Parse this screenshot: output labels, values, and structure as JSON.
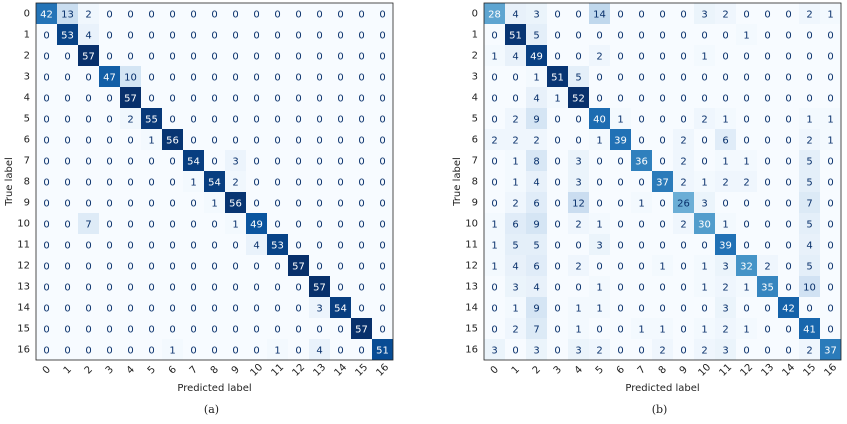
{
  "chart_data": [
    {
      "type": "heatmap",
      "caption": "(a)",
      "xlabel": "Predicted label",
      "ylabel": "True label",
      "categories": [
        "0",
        "1",
        "2",
        "3",
        "4",
        "5",
        "6",
        "7",
        "8",
        "9",
        "10",
        "11",
        "12",
        "13",
        "14",
        "15",
        "16"
      ],
      "colormap": [
        "#f7fbff",
        "#deebf7",
        "#c6dbef",
        "#9ecae1",
        "#6baed6",
        "#4292c6",
        "#2171b5",
        "#08519c",
        "#08306b"
      ],
      "values": [
        [
          42,
          13,
          2,
          0,
          0,
          0,
          0,
          0,
          0,
          0,
          0,
          0,
          0,
          0,
          0,
          0,
          0
        ],
        [
          0,
          53,
          4,
          0,
          0,
          0,
          0,
          0,
          0,
          0,
          0,
          0,
          0,
          0,
          0,
          0,
          0
        ],
        [
          0,
          0,
          57,
          0,
          0,
          0,
          0,
          0,
          0,
          0,
          0,
          0,
          0,
          0,
          0,
          0,
          0
        ],
        [
          0,
          0,
          0,
          47,
          10,
          0,
          0,
          0,
          0,
          0,
          0,
          0,
          0,
          0,
          0,
          0,
          0
        ],
        [
          0,
          0,
          0,
          0,
          57,
          0,
          0,
          0,
          0,
          0,
          0,
          0,
          0,
          0,
          0,
          0,
          0
        ],
        [
          0,
          0,
          0,
          0,
          2,
          55,
          0,
          0,
          0,
          0,
          0,
          0,
          0,
          0,
          0,
          0,
          0
        ],
        [
          0,
          0,
          0,
          0,
          0,
          1,
          56,
          0,
          0,
          0,
          0,
          0,
          0,
          0,
          0,
          0,
          0
        ],
        [
          0,
          0,
          0,
          0,
          0,
          0,
          0,
          54,
          0,
          3,
          0,
          0,
          0,
          0,
          0,
          0,
          0
        ],
        [
          0,
          0,
          0,
          0,
          0,
          0,
          0,
          1,
          54,
          2,
          0,
          0,
          0,
          0,
          0,
          0,
          0
        ],
        [
          0,
          0,
          0,
          0,
          0,
          0,
          0,
          0,
          1,
          56,
          0,
          0,
          0,
          0,
          0,
          0,
          0
        ],
        [
          0,
          0,
          7,
          0,
          0,
          0,
          0,
          0,
          0,
          1,
          49,
          0,
          0,
          0,
          0,
          0,
          0
        ],
        [
          0,
          0,
          0,
          0,
          0,
          0,
          0,
          0,
          0,
          0,
          4,
          53,
          0,
          0,
          0,
          0,
          0
        ],
        [
          0,
          0,
          0,
          0,
          0,
          0,
          0,
          0,
          0,
          0,
          0,
          0,
          57,
          0,
          0,
          0,
          0
        ],
        [
          0,
          0,
          0,
          0,
          0,
          0,
          0,
          0,
          0,
          0,
          0,
          0,
          0,
          57,
          0,
          0,
          0
        ],
        [
          0,
          0,
          0,
          0,
          0,
          0,
          0,
          0,
          0,
          0,
          0,
          0,
          0,
          3,
          54,
          0,
          0
        ],
        [
          0,
          0,
          0,
          0,
          0,
          0,
          0,
          0,
          0,
          0,
          0,
          0,
          0,
          0,
          0,
          57,
          0
        ],
        [
          0,
          0,
          0,
          0,
          0,
          0,
          1,
          0,
          0,
          0,
          0,
          1,
          0,
          4,
          0,
          0,
          51
        ]
      ]
    },
    {
      "type": "heatmap",
      "caption": "(b)",
      "xlabel": "Predicted label",
      "ylabel": "True label",
      "categories": [
        "0",
        "1",
        "2",
        "3",
        "4",
        "5",
        "6",
        "7",
        "8",
        "9",
        "10",
        "11",
        "12",
        "13",
        "14",
        "15",
        "16"
      ],
      "colormap": [
        "#f7fbff",
        "#deebf7",
        "#c6dbef",
        "#9ecae1",
        "#6baed6",
        "#4292c6",
        "#2171b5",
        "#08519c",
        "#08306b"
      ],
      "values": [
        [
          28,
          4,
          3,
          0,
          0,
          14,
          0,
          0,
          0,
          0,
          3,
          2,
          0,
          0,
          0,
          2,
          1
        ],
        [
          0,
          51,
          5,
          0,
          0,
          0,
          0,
          0,
          0,
          0,
          0,
          0,
          1,
          0,
          0,
          0,
          0
        ],
        [
          1,
          4,
          49,
          0,
          0,
          2,
          0,
          0,
          0,
          0,
          1,
          0,
          0,
          0,
          0,
          0,
          0
        ],
        [
          0,
          0,
          1,
          51,
          5,
          0,
          0,
          0,
          0,
          0,
          0,
          0,
          0,
          0,
          0,
          0,
          0
        ],
        [
          0,
          0,
          4,
          1,
          52,
          0,
          0,
          0,
          0,
          0,
          0,
          0,
          0,
          0,
          0,
          0,
          0
        ],
        [
          0,
          2,
          9,
          0,
          0,
          40,
          1,
          0,
          0,
          0,
          2,
          1,
          0,
          0,
          0,
          1,
          1
        ],
        [
          2,
          2,
          2,
          0,
          0,
          1,
          39,
          0,
          0,
          2,
          0,
          6,
          0,
          0,
          0,
          2,
          1
        ],
        [
          0,
          1,
          8,
          0,
          3,
          0,
          0,
          36,
          0,
          2,
          0,
          1,
          1,
          0,
          0,
          5,
          0
        ],
        [
          0,
          1,
          4,
          0,
          3,
          0,
          0,
          0,
          37,
          2,
          1,
          2,
          2,
          0,
          0,
          5,
          0
        ],
        [
          0,
          2,
          6,
          0,
          12,
          0,
          0,
          1,
          0,
          26,
          3,
          0,
          0,
          0,
          0,
          7,
          0
        ],
        [
          1,
          6,
          9,
          0,
          2,
          1,
          0,
          0,
          0,
          2,
          30,
          1,
          0,
          0,
          0,
          5,
          0
        ],
        [
          1,
          5,
          5,
          0,
          0,
          3,
          0,
          0,
          0,
          0,
          0,
          39,
          0,
          0,
          0,
          4,
          0
        ],
        [
          1,
          4,
          6,
          0,
          2,
          0,
          0,
          0,
          1,
          0,
          1,
          3,
          32,
          2,
          0,
          5,
          0
        ],
        [
          0,
          3,
          4,
          0,
          0,
          1,
          0,
          0,
          0,
          0,
          1,
          2,
          1,
          35,
          0,
          10,
          0
        ],
        [
          0,
          1,
          9,
          0,
          1,
          1,
          0,
          0,
          0,
          0,
          0,
          3,
          0,
          0,
          42,
          0,
          0
        ],
        [
          0,
          2,
          7,
          0,
          1,
          0,
          0,
          1,
          1,
          0,
          1,
          2,
          1,
          0,
          0,
          41,
          0
        ],
        [
          3,
          0,
          3,
          0,
          3,
          2,
          0,
          0,
          2,
          0,
          2,
          3,
          0,
          0,
          0,
          2,
          37
        ]
      ]
    }
  ]
}
